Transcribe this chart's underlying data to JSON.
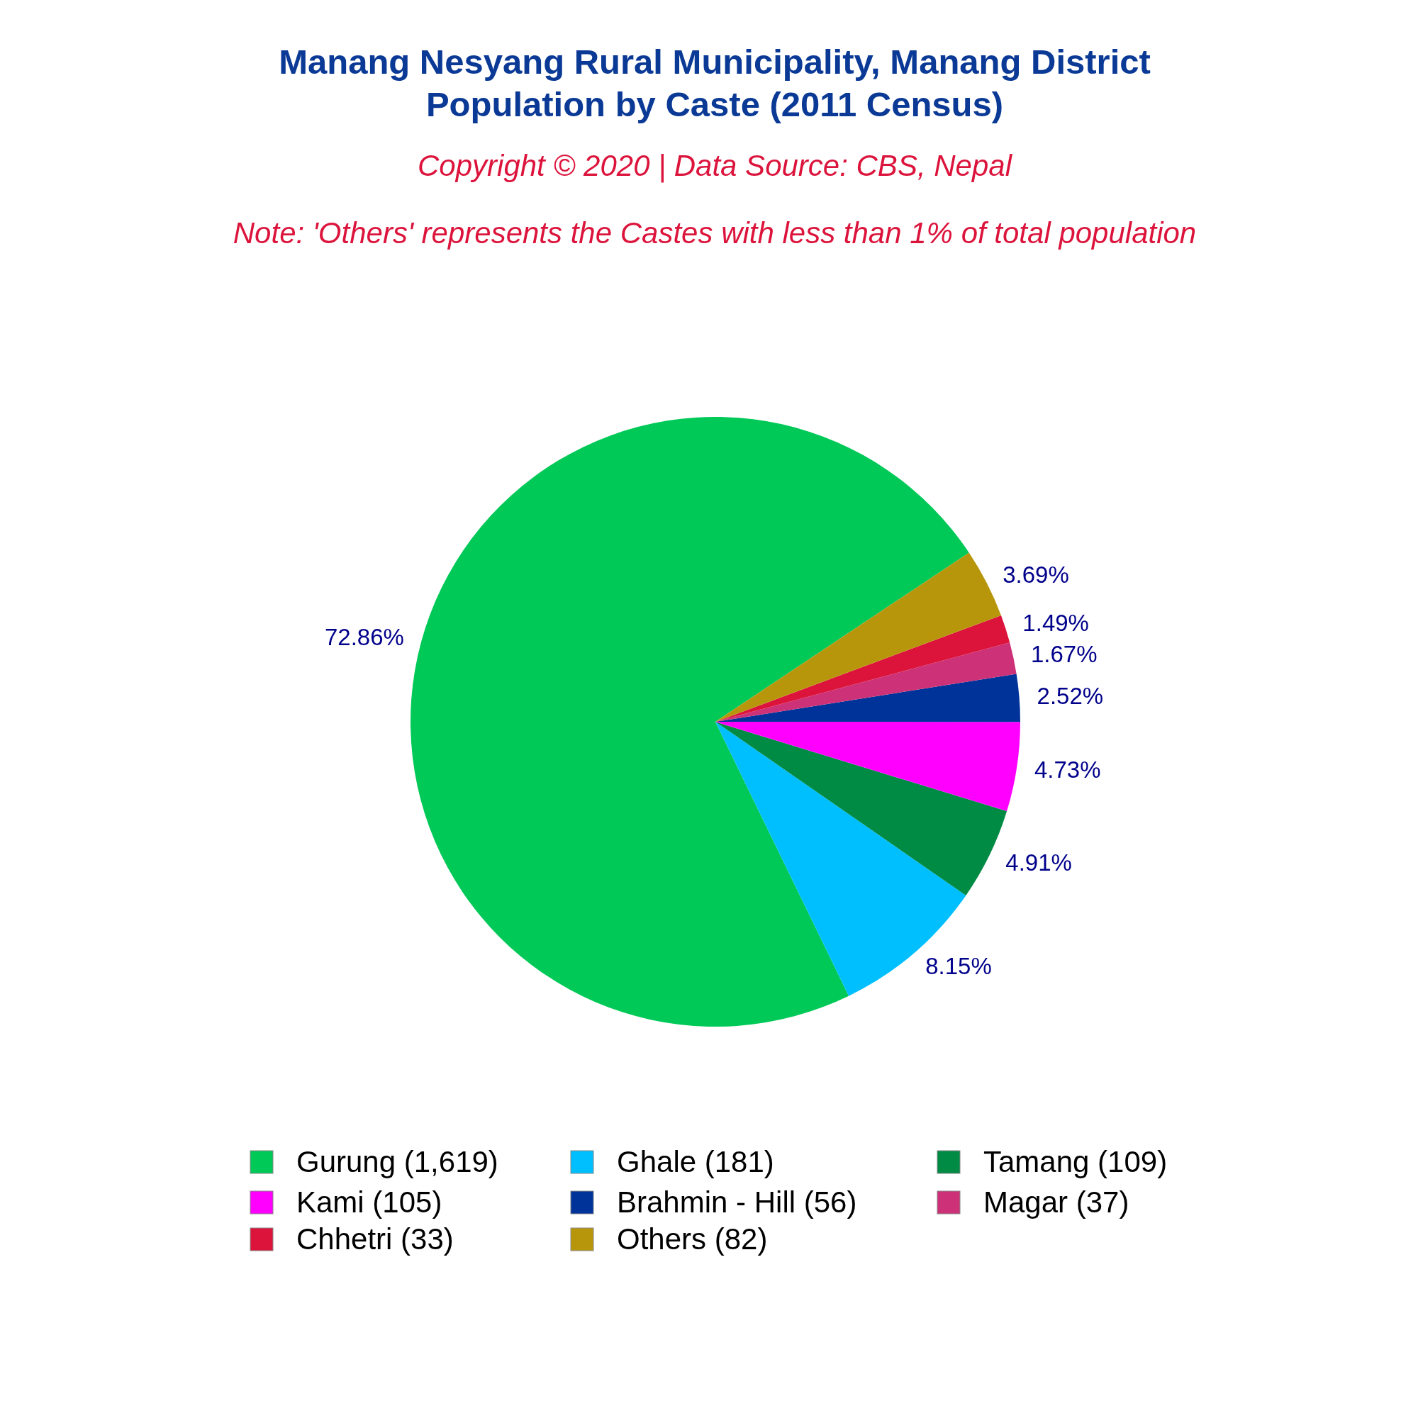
{
  "chart_data": {
    "type": "pie",
    "title": "Manang Nesyang Rural Municipality, Manang District\nPopulation by Caste (2011 Census)",
    "subtitle": "Copyright © 2020 | Data Source: CBS, Nepal",
    "annotations": [
      "Note: 'Others' represents the Castes with less than 1% of total population"
    ],
    "categories": [
      "Gurung (1,619)",
      "Ghale (181)",
      "Tamang (109)",
      "Kami (105)",
      "Brahmin - Hill (56)",
      "Magar (37)",
      "Chhetri (33)",
      "Others (82)"
    ],
    "values": [
      72.86,
      8.15,
      4.91,
      4.73,
      2.52,
      1.67,
      1.49,
      3.69
    ],
    "colors": [
      "#00c957",
      "#00bfff",
      "#008b45",
      "#ff00ff",
      "#003399",
      "#cd3278",
      "#dc143c",
      "#b8960c"
    ],
    "value_labels": [
      "72.86%",
      "8.15%",
      "4.91%",
      "4.73%",
      "2.52%",
      "1.67%",
      "1.49%",
      "3.69%"
    ],
    "legend": "bottom"
  }
}
